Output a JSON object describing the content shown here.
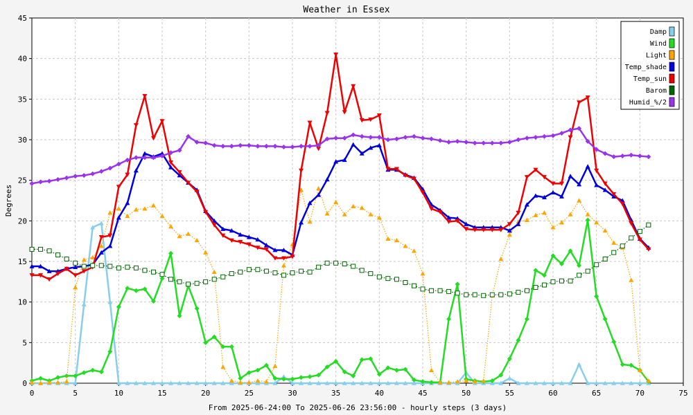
{
  "chart_data": {
    "type": "line",
    "title": "Weather in Essex",
    "xlabel": "From 2025-06-24:00 To 2025-06-26 23:56:00 - hourly steps (3 days)",
    "ylabel": "Degrees",
    "xlim": [
      0,
      75
    ],
    "ylim": [
      0,
      45
    ],
    "x_ticks": [
      0,
      5,
      10,
      15,
      20,
      25,
      30,
      35,
      40,
      45,
      50,
      55,
      60,
      65,
      70,
      75
    ],
    "y_ticks": [
      0,
      5,
      10,
      15,
      20,
      25,
      30,
      35,
      40,
      45
    ],
    "grid": true,
    "legend_position": "top-right",
    "x": [
      0,
      1,
      2,
      3,
      4,
      5,
      6,
      7,
      8,
      9,
      10,
      11,
      12,
      13,
      14,
      15,
      16,
      17,
      18,
      19,
      20,
      21,
      22,
      23,
      24,
      25,
      26,
      27,
      28,
      29,
      30,
      31,
      32,
      33,
      34,
      35,
      36,
      37,
      38,
      39,
      40,
      41,
      42,
      43,
      44,
      45,
      46,
      47,
      48,
      49,
      50,
      51,
      52,
      53,
      54,
      55,
      56,
      57,
      58,
      59,
      60,
      61,
      62,
      63,
      64,
      65,
      66,
      67,
      68,
      69,
      70,
      71
    ],
    "series": [
      {
        "name": "Damp",
        "color": "#87CEEB",
        "line": "solid",
        "marker": "triangle",
        "values": [
          0,
          0,
          0,
          0,
          0,
          0,
          9.7,
          19.2,
          19.7,
          10,
          0,
          0,
          0,
          0,
          0,
          0,
          0,
          0,
          0,
          0,
          0,
          0,
          0,
          0,
          0,
          0,
          0,
          0,
          0,
          0.8,
          0,
          0,
          0,
          0,
          0,
          0,
          0,
          0,
          0,
          0,
          0,
          0,
          0,
          0,
          0,
          0,
          0,
          0,
          0,
          0,
          1.3,
          0,
          0,
          0,
          0,
          0.6,
          0,
          0,
          0,
          0,
          0,
          0,
          0,
          2.3,
          0,
          0,
          0,
          0,
          0,
          0,
          0,
          0
        ]
      },
      {
        "name": "Wind",
        "color": "#22DD22",
        "line": "solid",
        "marker": "diamond",
        "values": [
          0.3,
          0.6,
          0.3,
          0.7,
          0.9,
          0.9,
          1.3,
          1.6,
          1.4,
          3.9,
          9.4,
          11.7,
          11.4,
          11.6,
          10.1,
          12.9,
          16,
          8.3,
          12,
          9.2,
          5,
          5.7,
          4.5,
          4.5,
          0.6,
          1.3,
          1.6,
          2.2,
          0.6,
          0.5,
          0.5,
          0.7,
          0.8,
          1,
          2,
          2.7,
          1.4,
          0.9,
          2.9,
          3,
          1.1,
          1.9,
          1.6,
          1.7,
          0.4,
          0.2,
          0.1,
          0.1,
          7.9,
          12.2,
          0.5,
          0.3,
          0.2,
          0.3,
          1,
          3,
          5.3,
          7.9,
          13.9,
          13.3,
          15.7,
          14.7,
          16.3,
          14.5,
          20.1,
          10.7,
          7.9,
          5.1,
          2.3,
          2.2,
          1.6,
          0.2
        ]
      },
      {
        "name": "Light",
        "color": "#FFA500",
        "line": "dotted",
        "marker": "triangle",
        "values": [
          0.1,
          0,
          0.1,
          0.1,
          0.2,
          11.8,
          15.2,
          15.5,
          16.9,
          21,
          21.5,
          20.6,
          21.4,
          21.5,
          21.9,
          20.6,
          19.3,
          18.1,
          18.4,
          17.6,
          16.1,
          13.7,
          2,
          0.3,
          0.1,
          0.1,
          0.3,
          0.2,
          2.1,
          14.5,
          17.1,
          23.8,
          19.9,
          24,
          20.9,
          22.3,
          20.8,
          21.8,
          21.6,
          20.8,
          20.4,
          17.8,
          17.6,
          16.9,
          16.3,
          13.5,
          1.6,
          0.1,
          0.1,
          0.2,
          0.3,
          0.2,
          0.3,
          10.8,
          15.3,
          18.3,
          19.9,
          20.1,
          20.7,
          21,
          19.2,
          19.8,
          20.8,
          22.5,
          20.8,
          19.8,
          18.8,
          17.3,
          16.7,
          12.7,
          1.6,
          0.3
        ]
      },
      {
        "name": "Temp_shade",
        "color": "#0000DD",
        "line": "solid",
        "marker": "triangle",
        "values": [
          14.4,
          14.4,
          13.8,
          13.8,
          14.1,
          14.3,
          14.4,
          14.6,
          16.1,
          16.9,
          20.4,
          22.2,
          26.2,
          28.3,
          27.9,
          28.3,
          26.6,
          25.6,
          24.7,
          23.8,
          21.2,
          20,
          19,
          18.8,
          18.3,
          18,
          17.7,
          17,
          16.4,
          16.4,
          15.8,
          19.8,
          22.2,
          23.2,
          25.1,
          27.3,
          27.5,
          29.4,
          28.3,
          29,
          29.3,
          26.3,
          26.3,
          25.7,
          25.3,
          23.9,
          22,
          21.3,
          20.4,
          20.3,
          19.6,
          19.2,
          19.2,
          19.2,
          19.2,
          18.8,
          19.6,
          22,
          23.1,
          22.9,
          23.5,
          23,
          25.5,
          24.5,
          26.7,
          24.4,
          23.8,
          23,
          22.5,
          20.1,
          17.8,
          16.7
        ]
      },
      {
        "name": "Temp_sun",
        "color": "#EE0000",
        "line": "solid",
        "marker": "down-triangle",
        "values": [
          13.3,
          13.3,
          12.8,
          13.5,
          14.1,
          13.3,
          13.8,
          14.3,
          18,
          18.2,
          24.2,
          25.7,
          31.8,
          35.4,
          30.2,
          32.3,
          27.2,
          26,
          24.7,
          23.6,
          21.1,
          19.5,
          18.2,
          17.6,
          17.4,
          17.1,
          16.7,
          16.5,
          15.4,
          15.4,
          15.6,
          26.2,
          32.1,
          28.9,
          33.3,
          40.5,
          33.4,
          36.6,
          32.4,
          32.5,
          33,
          26.4,
          26.4,
          25.6,
          25.2,
          23.5,
          21.5,
          21.1,
          19.9,
          20,
          19,
          18.9,
          18.9,
          18.9,
          18.9,
          19.6,
          21,
          25.4,
          26.3,
          25.4,
          24.6,
          24.6,
          30.3,
          34.6,
          35.2,
          26.2,
          24.6,
          23.3,
          22.1,
          19.7,
          17.7,
          16.5
        ]
      },
      {
        "name": "Barom",
        "color": "#006600",
        "line": "dotted",
        "marker": "square",
        "values": [
          16.5,
          16.5,
          16.3,
          15.8,
          15.3,
          14.8,
          14.4,
          14.5,
          14.5,
          14.4,
          14.2,
          14.3,
          14.2,
          13.9,
          13.7,
          13.4,
          12.8,
          12.5,
          12.2,
          12.3,
          12.5,
          12.8,
          13.1,
          13.5,
          13.7,
          14,
          14,
          13.8,
          13.6,
          13.3,
          13.6,
          13.8,
          13.7,
          14.3,
          14.8,
          14.8,
          14.7,
          14.4,
          13.9,
          13.5,
          13.1,
          12.9,
          12.8,
          12.4,
          12,
          11.6,
          11.4,
          11.4,
          11.3,
          11.1,
          10.9,
          10.9,
          10.8,
          10.9,
          10.9,
          11,
          11.2,
          11.4,
          11.8,
          12.1,
          12.5,
          12.6,
          12.6,
          13.3,
          13.8,
          14.6,
          15.3,
          16.1,
          16.9,
          17.9,
          18.7,
          19.5
        ]
      },
      {
        "name": "Humid_%/2",
        "color": "#9933EE",
        "line": "solid",
        "marker": "diamond",
        "values": [
          24.6,
          24.8,
          24.9,
          25.1,
          25.3,
          25.5,
          25.6,
          25.8,
          26.1,
          26.5,
          27,
          27.5,
          27.8,
          27.8,
          27.8,
          28,
          28.4,
          28.7,
          30.4,
          29.7,
          29.6,
          29.3,
          29.2,
          29.2,
          29.3,
          29.3,
          29.2,
          29.2,
          29.2,
          29.1,
          29.1,
          29.2,
          29.2,
          29.3,
          30.1,
          30.2,
          30.2,
          30.6,
          30.4,
          30.3,
          30.3,
          30,
          30.1,
          30.3,
          30.4,
          30.2,
          30.1,
          29.9,
          29.7,
          29.8,
          29.7,
          29.6,
          29.6,
          29.6,
          29.6,
          29.7,
          30,
          30.2,
          30.3,
          30.4,
          30.5,
          30.8,
          31.2,
          31.4,
          29.8,
          28.8,
          28.3,
          27.9,
          28,
          28.1,
          28,
          27.9
        ]
      }
    ]
  }
}
